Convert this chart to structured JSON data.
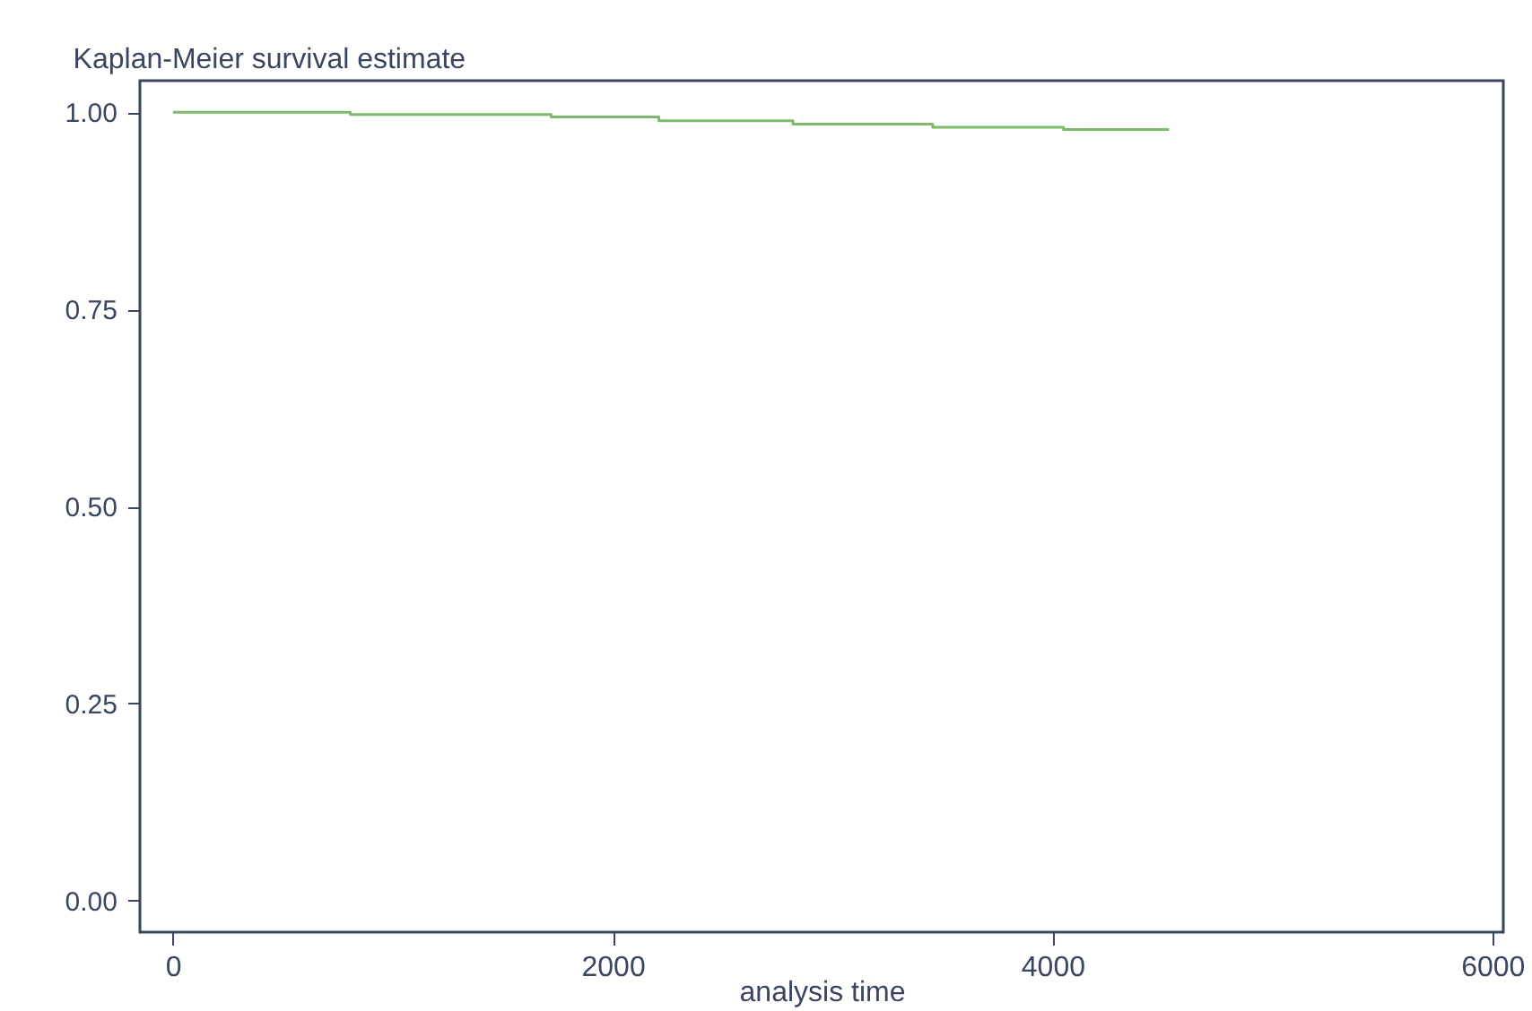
{
  "chart_data": {
    "type": "step",
    "title": "Kaplan-Meier survival estimate",
    "xlabel": "analysis time",
    "x": [
      0,
      807,
      1720,
      2210,
      2820,
      3455,
      4050,
      4530
    ],
    "series": [
      {
        "color": "#7cba6c",
        "values": [
          1,
          0.997,
          0.994,
          0.989,
          0.985,
          0.981,
          0.978,
          0.978
        ]
      }
    ],
    "xlim": [
      -150,
      6050
    ],
    "xticks": [
      0,
      2000,
      4000,
      6000
    ],
    "ylim": [
      -0.04,
      1.04
    ],
    "yticks": [
      {
        "value": 0,
        "label": "0.00"
      },
      {
        "value": 0.25,
        "label": "0.25"
      },
      {
        "value": 0.5,
        "label": "0.50"
      },
      {
        "value": 0.75,
        "label": "0.75"
      },
      {
        "value": 1,
        "label": "1.00"
      }
    ],
    "grid": false
  }
}
